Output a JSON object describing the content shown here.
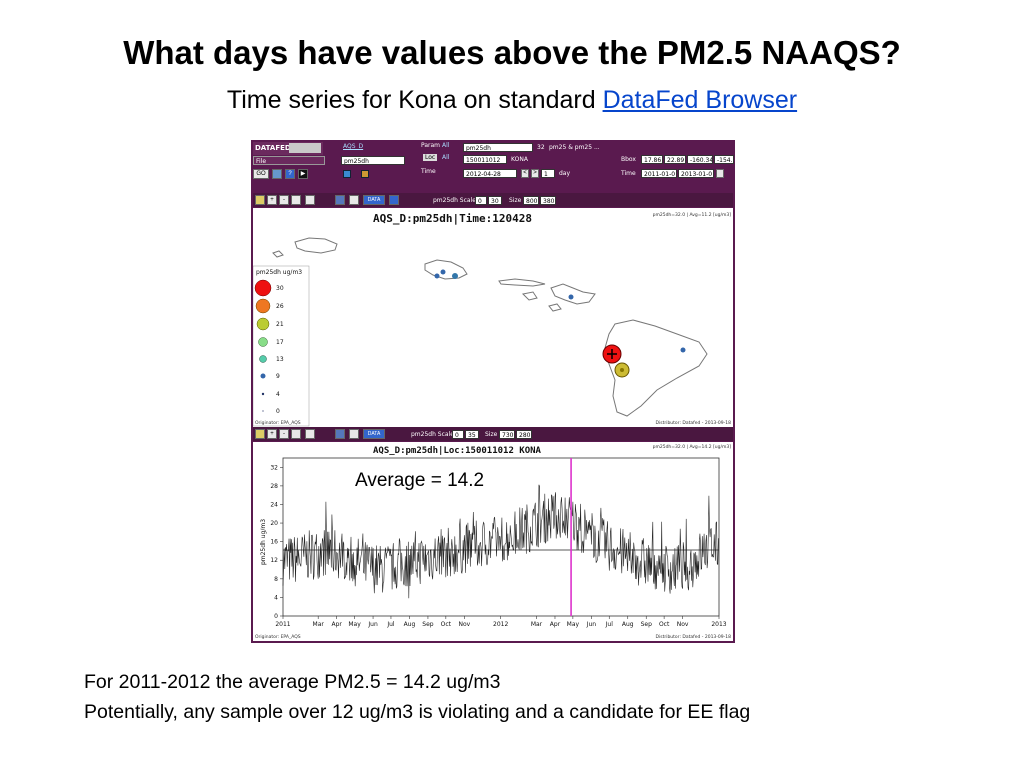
{
  "slide": {
    "title": "What days have values above the PM2.5 NAAQS?",
    "subtitle_prefix": "Time series for Kona on standard ",
    "subtitle_link": "DataFed Browser",
    "note_line1": "For 2011-2012 the average PM2.5 = 14.2 ug/m3",
    "note_line2": "Potentially, any sample over 12 ug/m3 is violating and a candidate for EE flag"
  },
  "browser": {
    "logo": "DATAFED",
    "file_menu": "File",
    "go_button": "GO",
    "dataset_link": "AQS_D",
    "param_select": "pm25dh",
    "param_label": "Param",
    "param_all": "All",
    "param_value": "pm25dh",
    "param_count": "32",
    "param_desc": "pm25 & pm25 ...",
    "loc_label": "Loc",
    "loc_all": "All",
    "loc_value": "150011012",
    "loc_name": "KONA",
    "time_label": "Time",
    "time_value": "2012-04-28",
    "time_step": "1",
    "time_unit": "day",
    "bbox_label": "Bbox",
    "bbox_values": [
      "17.86",
      "22.89",
      "-160.34",
      "-154."
    ],
    "trange_label": "Time",
    "trange_values": [
      "2011-01-0",
      "2013-01-0"
    ]
  },
  "map_panel": {
    "toolbar_scale_label": "pm25dh Scale",
    "scale_min": "0",
    "scale_max": "30",
    "size_label": "Size",
    "size_w": "800",
    "size_h": "380",
    "data_btn": "DATA",
    "title": "AQS_D:pm25dh|Time:120428",
    "corner_info": "pm25dh=32.0 | Avg=11.2 [ug/m3]",
    "legend_title": "pm25dh ug/m3",
    "legend_levels": [
      "30",
      "26",
      "21",
      "17",
      "13",
      "9",
      "4",
      "0"
    ],
    "legend_colors": [
      "#ee1111",
      "#ee7722",
      "#bbcc33",
      "#88dd88",
      "#55ccaa",
      "#3366aa",
      "#223366",
      "#223366"
    ],
    "originator": "Originator: EPA_AQS",
    "distributor": "Distributor: Datafed - 2013-09-18"
  },
  "ts_panel": {
    "toolbar_scale_label": "pm25dh Scale",
    "scale_min": "0",
    "scale_max": "35",
    "size_label": "Size",
    "size_w": "730",
    "size_h": "280",
    "data_btn": "DATA",
    "title": "AQS_D:pm25dh|Loc:150011012 KONA",
    "corner_info": "pm25dh=32.0 | Avg=14.2 [ug/m3]",
    "ylabel": "pm25dh ug/m3",
    "annotation": "Average = 14.2",
    "originator": "Originator: EPA_AQS",
    "distributor": "Distributor: Datafed - 2013-09-18"
  },
  "chart_data": {
    "type": "line",
    "title": "AQS_D:pm25dh|Loc:150011012 KONA",
    "xlabel": "",
    "ylabel": "pm25dh ug/m3",
    "ylim": [
      0,
      34
    ],
    "yticks": [
      0,
      4,
      8,
      12,
      16,
      20,
      24,
      28,
      32
    ],
    "xlim": [
      "2011-01-01",
      "2013-01-01"
    ],
    "xtick_labels": [
      "2011",
      "Mar",
      "Apr",
      "May",
      "Jun",
      "Jul",
      "Aug",
      "Sep",
      "Oct",
      "Nov",
      "2012",
      "Mar",
      "Apr",
      "May",
      "Jun",
      "Jul",
      "Aug",
      "Sep",
      "Oct",
      "Nov",
      "2013"
    ],
    "average": 14.2,
    "cursor_date": "2012-04-28",
    "series": [
      {
        "color": "#222222",
        "monthly_values": [
          {
            "x": "2011-01-15",
            "y": 12
          },
          {
            "x": "2011-02-15",
            "y": 13
          },
          {
            "x": "2011-03-15",
            "y": 14
          },
          {
            "x": "2011-04-15",
            "y": 13
          },
          {
            "x": "2011-05-15",
            "y": 11
          },
          {
            "x": "2011-06-15",
            "y": 10
          },
          {
            "x": "2011-07-15",
            "y": 11
          },
          {
            "x": "2011-08-15",
            "y": 12
          },
          {
            "x": "2011-09-15",
            "y": 13
          },
          {
            "x": "2011-10-15",
            "y": 14
          },
          {
            "x": "2011-11-15",
            "y": 15
          },
          {
            "x": "2011-12-15",
            "y": 16
          },
          {
            "x": "2012-01-15",
            "y": 17
          },
          {
            "x": "2012-02-15",
            "y": 19
          },
          {
            "x": "2012-03-15",
            "y": 21
          },
          {
            "x": "2012-04-15",
            "y": 22
          },
          {
            "x": "2012-05-15",
            "y": 19
          },
          {
            "x": "2012-06-15",
            "y": 16
          },
          {
            "x": "2012-07-15",
            "y": 14
          },
          {
            "x": "2012-08-15",
            "y": 12
          },
          {
            "x": "2012-09-15",
            "y": 11
          },
          {
            "x": "2012-10-15",
            "y": 10
          },
          {
            "x": "2012-11-15",
            "y": 11
          },
          {
            "x": "2012-12-15",
            "y": 15
          }
        ]
      }
    ]
  }
}
